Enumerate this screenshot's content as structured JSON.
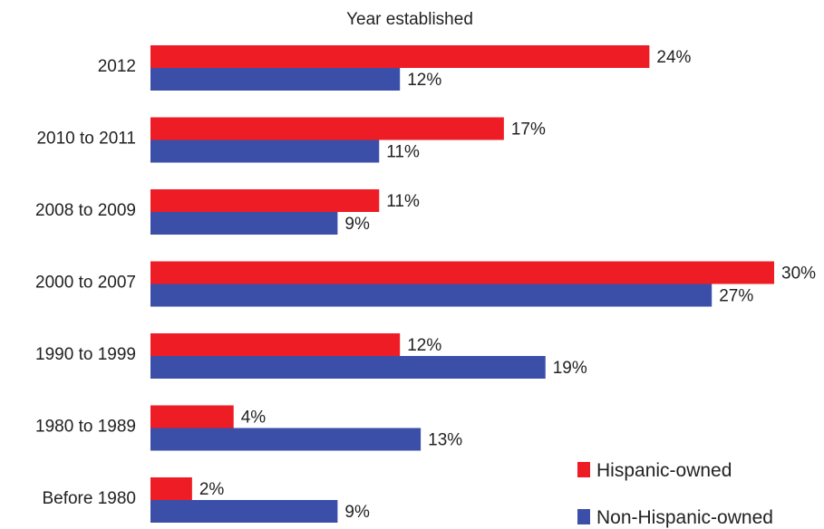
{
  "chart_data": {
    "type": "bar",
    "orientation": "horizontal",
    "title": "Year established",
    "xlabel": "",
    "ylabel": "",
    "categories": [
      "2012",
      "2010 to 2011",
      "2008 to 2009",
      "2000 to 2007",
      "1990 to 1999",
      "1980 to 1989",
      "Before 1980"
    ],
    "series": [
      {
        "name": "Hispanic-owned",
        "color": "#ee1c25",
        "values": [
          24,
          17,
          11,
          30,
          12,
          4,
          2
        ]
      },
      {
        "name": "Non-Hispanic-owned",
        "color": "#3c4fa8",
        "values": [
          12,
          11,
          9,
          27,
          19,
          13,
          9
        ]
      }
    ],
    "value_suffix": "%",
    "xlim": [
      0,
      30
    ],
    "grid": false,
    "legend_position": "bottom-right"
  }
}
